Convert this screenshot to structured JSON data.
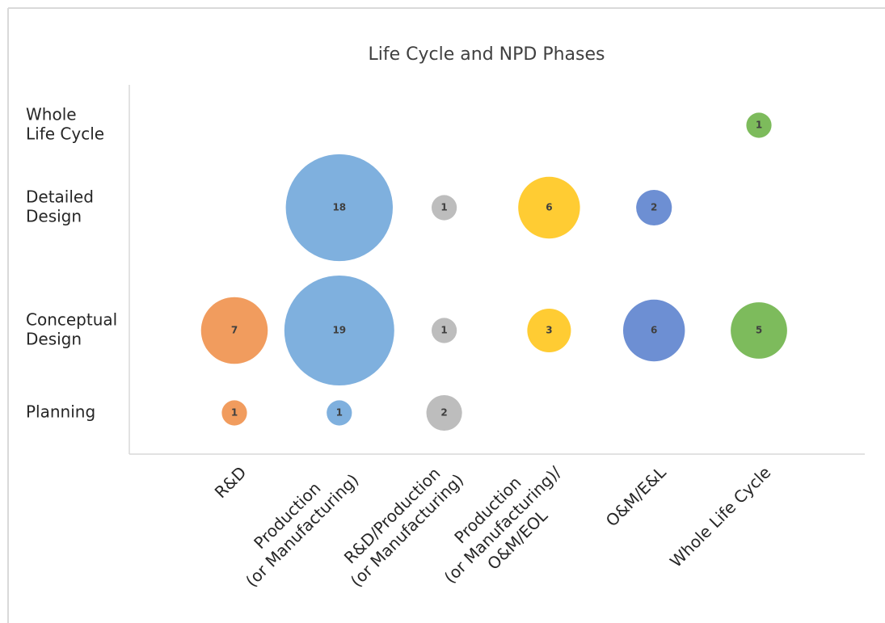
{
  "chart_data": {
    "type": "bubble",
    "title": "Life Cycle and NPD Phases",
    "categories": [
      [
        "R&D"
      ],
      [
        "Production",
        "(or Manufacturing)"
      ],
      [
        "R&D/Production",
        "(or Manufacturing)"
      ],
      [
        "Production",
        "(or Manufacturing)/",
        "O&M/EOL"
      ],
      [
        "O&M/E&L"
      ],
      [
        "Whole Life Cycle"
      ]
    ],
    "y_categories": [
      [
        "Whole",
        "Life Cycle"
      ],
      [
        "Detailed",
        "Design"
      ],
      [
        "Conceptual",
        "Design"
      ],
      [
        "Planning"
      ]
    ],
    "series": [
      {
        "color": "#f19c5e",
        "values": [
          null,
          null,
          7,
          1
        ]
      },
      {
        "color": "#7fb0de",
        "values": [
          null,
          18,
          19,
          1
        ]
      },
      {
        "color": "#bdbdbd",
        "values": [
          null,
          1,
          1,
          2
        ]
      },
      {
        "color": "#ffcc33",
        "values": [
          null,
          6,
          3,
          null
        ]
      },
      {
        "color": "#6d8fd3",
        "values": [
          null,
          2,
          6,
          null
        ]
      },
      {
        "color": "#7dbb5c",
        "values": [
          1,
          null,
          5,
          null
        ]
      }
    ]
  }
}
